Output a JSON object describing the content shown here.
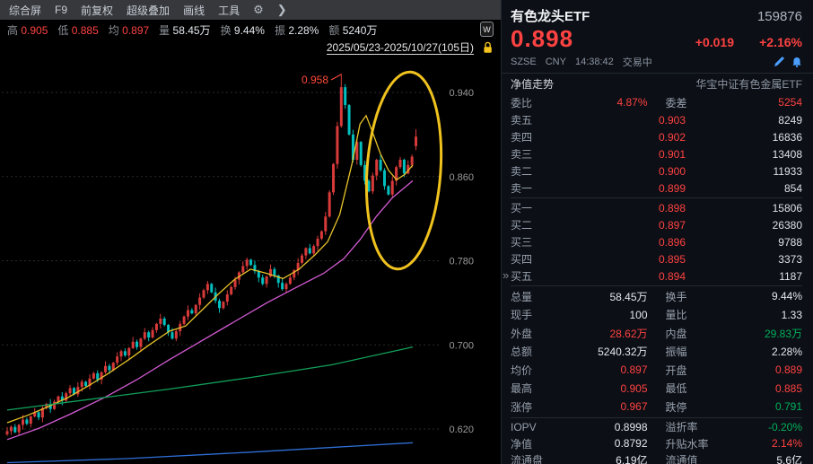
{
  "colors": {
    "up": "#ff4242",
    "down": "#00b05c",
    "text": "#e4e8ee",
    "label": "#97a0ad",
    "accent_blue": "#4a9eff"
  },
  "toolbar": {
    "items": [
      {
        "label": "综合屏"
      },
      {
        "label": "F9"
      },
      {
        "label": "前复权"
      },
      {
        "label": "超级叠加"
      },
      {
        "label": "画线"
      },
      {
        "label": "工具"
      }
    ],
    "gear": "⚙",
    "more": "❯"
  },
  "stats_bar": [
    {
      "label": "高",
      "value": "0.905"
    },
    {
      "label": "低",
      "value": "0.885"
    },
    {
      "label": "均",
      "value": "0.897"
    },
    {
      "label": "量",
      "value": "58.45万"
    },
    {
      "label": "换",
      "value": "9.44%"
    },
    {
      "label": "振",
      "value": "2.28%"
    },
    {
      "label": "额",
      "value": "5240万"
    }
  ],
  "wp_badge": "W",
  "date_range": "2025/05/23-2025/10/27(105日)",
  "chart": {
    "y_axis_labels": [
      "0.940",
      "0.860",
      "0.780",
      "0.700",
      "0.620"
    ],
    "y_axis_values": [
      0.94,
      0.86,
      0.78,
      0.7,
      0.62
    ],
    "peak_annotation": "0.958",
    "peak_value": 0.958,
    "peak_index": 85,
    "first_open": 0.615,
    "closes": [
      0.618,
      0.622,
      0.617,
      0.624,
      0.629,
      0.625,
      0.632,
      0.636,
      0.631,
      0.64,
      0.644,
      0.639,
      0.646,
      0.651,
      0.647,
      0.654,
      0.659,
      0.653,
      0.66,
      0.665,
      0.661,
      0.668,
      0.673,
      0.667,
      0.674,
      0.68,
      0.676,
      0.683,
      0.689,
      0.694,
      0.69,
      0.697,
      0.703,
      0.698,
      0.706,
      0.712,
      0.707,
      0.714,
      0.72,
      0.725,
      0.719,
      0.712,
      0.706,
      0.713,
      0.72,
      0.727,
      0.733,
      0.73,
      0.738,
      0.745,
      0.752,
      0.758,
      0.75,
      0.742,
      0.735,
      0.741,
      0.748,
      0.755,
      0.762,
      0.769,
      0.775,
      0.781,
      0.776,
      0.77,
      0.764,
      0.758,
      0.765,
      0.772,
      0.766,
      0.759,
      0.753,
      0.758,
      0.764,
      0.771,
      0.778,
      0.785,
      0.792,
      0.787,
      0.794,
      0.801,
      0.808,
      0.822,
      0.845,
      0.872,
      0.908,
      0.945,
      0.928,
      0.9,
      0.876,
      0.893,
      0.871,
      0.856,
      0.846,
      0.861,
      0.876,
      0.866,
      0.851,
      0.843,
      0.856,
      0.869,
      0.876,
      0.863,
      0.871,
      0.879,
      0.898
    ],
    "today": {
      "open": 0.889,
      "high": 0.905,
      "low": 0.885,
      "close": 0.898
    },
    "ma_fast": [
      [
        0,
        0.626
      ],
      [
        0.05,
        0.633
      ],
      [
        0.1,
        0.641
      ],
      [
        0.15,
        0.65
      ],
      [
        0.2,
        0.661
      ],
      [
        0.25,
        0.673
      ],
      [
        0.3,
        0.686
      ],
      [
        0.35,
        0.7
      ],
      [
        0.4,
        0.713
      ],
      [
        0.44,
        0.718
      ],
      [
        0.48,
        0.733
      ],
      [
        0.52,
        0.748
      ],
      [
        0.56,
        0.762
      ],
      [
        0.6,
        0.772
      ],
      [
        0.64,
        0.768
      ],
      [
        0.68,
        0.763
      ],
      [
        0.72,
        0.772
      ],
      [
        0.76,
        0.786
      ],
      [
        0.79,
        0.798
      ],
      [
        0.82,
        0.824
      ],
      [
        0.85,
        0.872
      ],
      [
        0.87,
        0.91
      ],
      [
        0.885,
        0.918
      ],
      [
        0.9,
        0.903
      ],
      [
        0.92,
        0.882
      ],
      [
        0.94,
        0.866
      ],
      [
        0.96,
        0.857
      ],
      [
        0.98,
        0.862
      ],
      [
        1.0,
        0.871
      ]
    ],
    "ma_mid": [
      [
        0,
        0.61
      ],
      [
        0.08,
        0.621
      ],
      [
        0.16,
        0.635
      ],
      [
        0.24,
        0.65
      ],
      [
        0.32,
        0.667
      ],
      [
        0.4,
        0.686
      ],
      [
        0.48,
        0.704
      ],
      [
        0.56,
        0.722
      ],
      [
        0.64,
        0.74
      ],
      [
        0.72,
        0.756
      ],
      [
        0.78,
        0.768
      ],
      [
        0.83,
        0.782
      ],
      [
        0.87,
        0.8
      ],
      [
        0.91,
        0.822
      ],
      [
        0.95,
        0.84
      ],
      [
        1.0,
        0.856
      ]
    ],
    "ma_slow": [
      [
        0,
        0.638
      ],
      [
        0.2,
        0.648
      ],
      [
        0.4,
        0.658
      ],
      [
        0.6,
        0.669
      ],
      [
        0.8,
        0.681
      ],
      [
        1.0,
        0.698
      ]
    ],
    "ma_slowest": [
      [
        0,
        0.588
      ],
      [
        0.3,
        0.592
      ],
      [
        0.6,
        0.598
      ],
      [
        1.0,
        0.607
      ]
    ],
    "colors": {
      "up": "#d83a3a",
      "down": "#00bfbf",
      "ma1": "#e6c229",
      "ma2": "#d45bd4",
      "ma3": "#12a05a",
      "ma4": "#2f6fd6",
      "grid": "#2b2b2b",
      "axis_text": "#9b9b9b",
      "highlight": "#f0c21e",
      "annotation": "#ff4a3a"
    }
  },
  "panel": {
    "name": "有色龙头ETF",
    "code": "159876",
    "price": "0.898",
    "change": "+0.019",
    "change_pct": "+2.16%",
    "exchange": "SZSE",
    "currency": "CNY",
    "time": "14:38:42",
    "status": "交易中",
    "tab": "净值走势",
    "fund_name": "华宝中证有色金属ETF",
    "weibi_label": "委比",
    "weibi": "4.87%",
    "weicha_label": "委差",
    "weicha": "5254",
    "asks": [
      {
        "label": "卖五",
        "price": "0.903",
        "vol": "8249"
      },
      {
        "label": "卖四",
        "price": "0.902",
        "vol": "16836"
      },
      {
        "label": "卖三",
        "price": "0.901",
        "vol": "13408"
      },
      {
        "label": "卖二",
        "price": "0.900",
        "vol": "11933"
      },
      {
        "label": "卖一",
        "price": "0.899",
        "vol": "854"
      }
    ],
    "bids": [
      {
        "label": "买一",
        "price": "0.898",
        "vol": "15806"
      },
      {
        "label": "买二",
        "price": "0.897",
        "vol": "26380"
      },
      {
        "label": "买三",
        "price": "0.896",
        "vol": "9788"
      },
      {
        "label": "买四",
        "price": "0.895",
        "vol": "3373"
      },
      {
        "label": "买五",
        "price": "0.894",
        "vol": "1187"
      }
    ],
    "stats": [
      {
        "l1": "总量",
        "v1": "58.45万",
        "l2": "换手",
        "v2": "9.44%"
      },
      {
        "l1": "现手",
        "v1": "100",
        "l2": "量比",
        "v2": "1.33"
      },
      {
        "l1": "外盘",
        "v1": "28.62万",
        "l2": "内盘",
        "v2": "29.83万"
      },
      {
        "l1": "总额",
        "v1": "5240.32万",
        "l2": "振幅",
        "v2": "2.28%"
      },
      {
        "l1": "均价",
        "v1": "0.897",
        "l2": "开盘",
        "v2": "0.889"
      },
      {
        "l1": "最高",
        "v1": "0.905",
        "l2": "最低",
        "v2": "0.885"
      },
      {
        "l1": "涨停",
        "v1": "0.967",
        "l2": "跌停",
        "v2": "0.791"
      }
    ],
    "extra": [
      {
        "l1": "IOPV",
        "v1": "0.8998",
        "l2": "溢折率",
        "v2": "-0.20%"
      },
      {
        "l1": "净值",
        "v1": "0.8792",
        "l2": "升贴水率",
        "v2": "2.14%"
      },
      {
        "l1": "流通盘",
        "v1": "6.19亿",
        "l2": "流通值",
        "v2": "5.6亿"
      }
    ],
    "collapse_icon": "»"
  }
}
